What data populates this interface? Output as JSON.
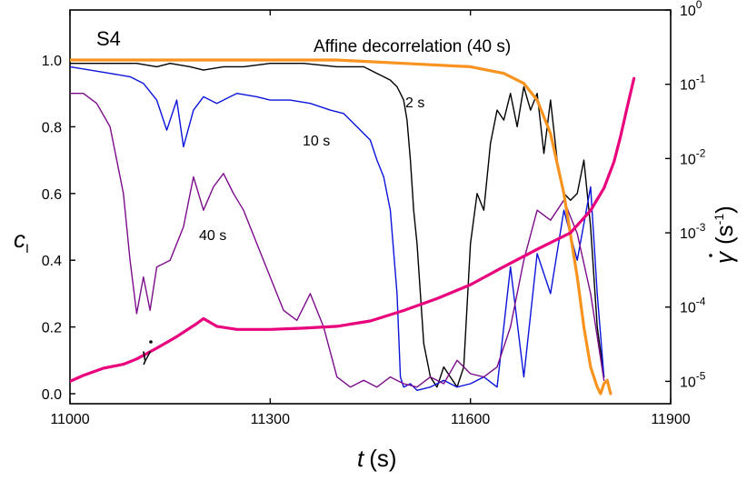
{
  "chart_data": {
    "type": "line",
    "panel_label": "S4",
    "x_axis": {
      "label_italic": "t",
      "label_unit": "(s)",
      "range": [
        11000,
        11900
      ],
      "ticks": [
        11000,
        11300,
        11600,
        11900
      ]
    },
    "y_left": {
      "label": "c",
      "label_sub": "I",
      "range": [
        -0.03,
        1.15
      ],
      "ticks": [
        "0.0",
        "0.2",
        "0.4",
        "0.6",
        "0.8",
        "1.0"
      ],
      "tick_values": [
        0.0,
        0.2,
        0.4,
        0.6,
        0.8,
        1.0
      ]
    },
    "y_right": {
      "label_symbol": "γ",
      "label_unit_open": "(s",
      "label_unit_exp": "-1",
      "label_unit_close": ")",
      "scale": "log",
      "range": [
        5e-06,
        1
      ],
      "ticks": [
        {
          "base": "10",
          "exp": "0",
          "value": 1
        },
        {
          "base": "10",
          "exp": "-1",
          "value": 0.1
        },
        {
          "base": "10",
          "exp": "-2",
          "value": 0.01
        },
        {
          "base": "10",
          "exp": "-3",
          "value": 0.001
        },
        {
          "base": "10",
          "exp": "-4",
          "value": 0.0001
        },
        {
          "base": "10",
          "exp": "-5",
          "value": 1e-05
        }
      ]
    },
    "annotations": {
      "affine": "Affine decorrelation (40 s)",
      "s2": "2 s",
      "s10": "10 s",
      "s40": "40 s",
      "gamma_symbol": "γ"
    },
    "series": [
      {
        "label": "2 s",
        "color": "#000000",
        "axis": "left",
        "x": [
          11000,
          11050,
          11100,
          11130,
          11150,
          11180,
          11200,
          11230,
          11260,
          11300,
          11350,
          11400,
          11440,
          11460,
          11470,
          11480,
          11490,
          11495,
          11500,
          11505,
          11510,
          11515,
          11520,
          11525,
          11530,
          11540,
          11550,
          11560,
          11570,
          11580,
          11590,
          11600,
          11610,
          11620,
          11630,
          11640,
          11650,
          11660,
          11670,
          11680,
          11690,
          11700,
          11710,
          11720,
          11730,
          11740,
          11750,
          11760,
          11770,
          11780,
          11790,
          11800
        ],
        "y": [
          0.99,
          0.99,
          0.99,
          0.98,
          0.99,
          0.98,
          0.97,
          0.98,
          0.98,
          0.99,
          0.99,
          0.98,
          0.98,
          0.96,
          0.95,
          0.94,
          0.92,
          0.9,
          0.88,
          0.82,
          0.7,
          0.55,
          0.45,
          0.3,
          0.15,
          0.05,
          0.02,
          0.08,
          0.05,
          0.02,
          0.08,
          0.45,
          0.6,
          0.55,
          0.75,
          0.85,
          0.82,
          0.9,
          0.8,
          0.92,
          0.85,
          0.9,
          0.72,
          0.88,
          0.7,
          0.6,
          0.58,
          0.6,
          0.7,
          0.5,
          0.2,
          0.05
        ]
      },
      {
        "label": "10 s",
        "color": "#0a14d9",
        "axis": "left",
        "x": [
          11000,
          11030,
          11060,
          11090,
          11110,
          11130,
          11145,
          11160,
          11170,
          11185,
          11200,
          11220,
          11250,
          11280,
          11300,
          11330,
          11360,
          11390,
          11410,
          11430,
          11450,
          11460,
          11470,
          11480,
          11490,
          11495,
          11500,
          11510,
          11520,
          11540,
          11560,
          11580,
          11600,
          11620,
          11640,
          11660,
          11680,
          11700,
          11720,
          11740,
          11760,
          11780,
          11790,
          11800
        ],
        "y": [
          0.98,
          0.97,
          0.96,
          0.95,
          0.93,
          0.88,
          0.79,
          0.88,
          0.74,
          0.85,
          0.89,
          0.87,
          0.9,
          0.89,
          0.88,
          0.88,
          0.87,
          0.85,
          0.84,
          0.8,
          0.76,
          0.7,
          0.65,
          0.55,
          0.3,
          0.05,
          0.02,
          0.03,
          0.01,
          0.02,
          0.04,
          0.02,
          0.03,
          0.05,
          0.02,
          0.38,
          0.05,
          0.42,
          0.3,
          0.55,
          0.4,
          0.62,
          0.3,
          0.05
        ]
      },
      {
        "label": "40 s",
        "color": "#7b0c8a",
        "axis": "left",
        "x": [
          11000,
          11020,
          11040,
          11060,
          11080,
          11090,
          11100,
          11110,
          11120,
          11130,
          11150,
          11170,
          11185,
          11200,
          11215,
          11230,
          11245,
          11260,
          11280,
          11300,
          11320,
          11340,
          11360,
          11380,
          11400,
          11420,
          11440,
          11460,
          11480,
          11500,
          11520,
          11540,
          11560,
          11580,
          11600,
          11620,
          11640,
          11660,
          11680,
          11700,
          11720,
          11740,
          11760,
          11780,
          11800
        ],
        "y": [
          0.9,
          0.9,
          0.87,
          0.8,
          0.6,
          0.4,
          0.24,
          0.35,
          0.25,
          0.38,
          0.4,
          0.5,
          0.65,
          0.55,
          0.62,
          0.66,
          0.6,
          0.55,
          0.45,
          0.35,
          0.25,
          0.22,
          0.3,
          0.2,
          0.05,
          0.02,
          0.04,
          0.02,
          0.05,
          0.03,
          0.02,
          0.05,
          0.03,
          0.1,
          0.06,
          0.05,
          0.08,
          0.2,
          0.4,
          0.55,
          0.52,
          0.58,
          0.48,
          0.3,
          0.04
        ]
      },
      {
        "label": "Affine decorrelation (40 s)",
        "color": "#f7931e",
        "axis": "left",
        "x": [
          11000,
          11200,
          11400,
          11500,
          11600,
          11650,
          11680,
          11700,
          11720,
          11740,
          11760,
          11770,
          11780,
          11790,
          11795,
          11800,
          11805,
          11810
        ],
        "y": [
          1.0,
          1.0,
          1.0,
          0.99,
          0.98,
          0.96,
          0.93,
          0.88,
          0.78,
          0.6,
          0.35,
          0.2,
          0.08,
          0.02,
          0.0,
          0.03,
          0.04,
          0.0
        ]
      },
      {
        "label": "γ",
        "color": "#e8007d",
        "axis": "right",
        "x": [
          11000,
          11020,
          11050,
          11080,
          11100,
          11130,
          11160,
          11190,
          11200,
          11220,
          11250,
          11300,
          11350,
          11400,
          11450,
          11500,
          11550,
          11600,
          11650,
          11700,
          11750,
          11780,
          11800,
          11815,
          11825,
          11835,
          11845
        ],
        "y": [
          1e-05,
          1.2e-05,
          1.5e-05,
          1.7e-05,
          2e-05,
          2.8e-05,
          4e-05,
          6e-05,
          7e-05,
          5.5e-05,
          5e-05,
          5e-05,
          5.2e-05,
          5.5e-05,
          6.5e-05,
          9e-05,
          0.00013,
          0.0002,
          0.00035,
          0.0006,
          0.001,
          0.002,
          0.004,
          0.009,
          0.02,
          0.05,
          0.12
        ]
      }
    ]
  }
}
